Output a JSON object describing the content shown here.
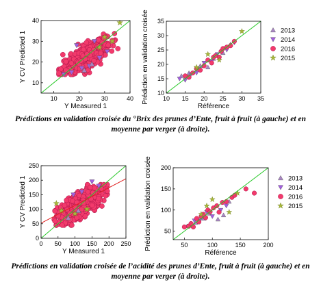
{
  "captions": {
    "brix": "Prédictions en validation croisée du °Brix des prunes d’Ente, fruit à fruit (à gauche) et en moyenne par verger (à droite).",
    "acid": "Prédictions en validation croisée de l’acidité des prunes d’Ente, fruit à fruit (à gauche) et en moyenne par verger (à droite)."
  },
  "legend": [
    {
      "label": "2013",
      "marker": "triangle-up",
      "color": "#a985c4"
    },
    {
      "label": "2014",
      "marker": "triangle-down",
      "color": "#a35ee0"
    },
    {
      "label": "2016",
      "marker": "circle",
      "color": "#f23a6c"
    },
    {
      "label": "2015",
      "marker": "star",
      "color": "#a8b83a"
    }
  ],
  "colors": {
    "identity_line": "#28c828",
    "regression_line": "#e02020",
    "points": "#f23a6c",
    "edge": "#b0154a"
  },
  "chart_data": [
    {
      "id": "brix_fruit",
      "type": "scatter",
      "xlabel": "Y Measured 1",
      "ylabel": "Y CV Predicted 1",
      "xlim": [
        5,
        40
      ],
      "ylim": [
        5,
        40
      ],
      "xticks": [
        "10",
        "20",
        "30",
        "40"
      ],
      "yticks": [
        "10",
        "20",
        "30",
        "40"
      ],
      "xtick_values": [
        10,
        20,
        30,
        40
      ],
      "ytick_values": [
        10,
        20,
        30,
        40
      ],
      "reference_line": {
        "name": "",
        "points": [
          [
            5,
            5
          ],
          [
            40,
            40
          ]
        ]
      },
      "cloud": {
        "center": [
          22,
          22
        ],
        "n": 520,
        "x_sd": 4.4,
        "slope": 0.72,
        "noise": 2.8,
        "xrange": [
          12,
          37
        ],
        "yrange": [
          14,
          37
        ]
      },
      "series": [
        {
          "name": "2014",
          "points": [
            [
              14,
              14
            ],
            [
              17,
              15
            ],
            [
              21,
              17
            ],
            [
              24,
              18
            ],
            [
              28,
              22
            ],
            [
              31,
              25
            ],
            [
              26,
              30
            ],
            [
              19,
              28
            ]
          ]
        },
        {
          "name": "2013",
          "points": [
            [
              25,
              19
            ],
            [
              22,
              16
            ]
          ]
        },
        {
          "name": "2015",
          "points": [
            [
              36,
              39
            ],
            [
              33,
              30
            ],
            [
              30,
              32
            ],
            [
              28,
              27
            ]
          ]
        }
      ]
    },
    {
      "id": "brix_orchard",
      "type": "scatter",
      "xlabel": "Référence",
      "ylabel": "Prédiction en validation croisée",
      "xlim": [
        10,
        35
      ],
      "ylim": [
        10,
        35
      ],
      "xticks": [
        "10",
        "15",
        "20",
        "25",
        "30",
        "35"
      ],
      "yticks": [
        "10",
        "15",
        "20",
        "25",
        "30",
        "35"
      ],
      "xtick_values": [
        10,
        15,
        20,
        25,
        30,
        35
      ],
      "ytick_values": [
        10,
        15,
        20,
        25,
        30,
        35
      ],
      "reference_line": {
        "name": "",
        "points": [
          [
            10,
            10
          ],
          [
            35,
            35
          ]
        ]
      },
      "series": [
        {
          "name": "2013",
          "points": [
            [
              14,
              16
            ],
            [
              16,
              17
            ],
            [
              19,
              19.5
            ],
            [
              21,
              19
            ],
            [
              22.5,
              22
            ],
            [
              25,
              24
            ],
            [
              27,
              27
            ]
          ]
        },
        {
          "name": "2014",
          "points": [
            [
              13.5,
              15
            ],
            [
              15,
              14.5
            ],
            [
              16.5,
              16.5
            ],
            [
              18,
              17
            ],
            [
              20,
              20.5
            ],
            [
              22,
              21
            ],
            [
              23.5,
              23.5
            ],
            [
              26,
              25
            ],
            [
              28,
              27.5
            ]
          ]
        },
        {
          "name": "2016",
          "points": [
            [
              15,
              16
            ],
            [
              16,
              15.5
            ],
            [
              17,
              17
            ],
            [
              18,
              18.5
            ],
            [
              19,
              18
            ],
            [
              20,
              19.5
            ],
            [
              21,
              21.5
            ],
            [
              22,
              20.5
            ],
            [
              22.5,
              22.5
            ],
            [
              23,
              23
            ],
            [
              24,
              22.5
            ],
            [
              24.5,
              24.5
            ],
            [
              25,
              25.5
            ],
            [
              26,
              26
            ],
            [
              27,
              26.5
            ],
            [
              28,
              28
            ]
          ]
        },
        {
          "name": "2015",
          "points": [
            [
              30,
              31.5
            ],
            [
              21,
              23.5
            ],
            [
              24,
              21.5
            ],
            [
              18,
              19
            ]
          ]
        }
      ]
    },
    {
      "id": "acid_fruit",
      "type": "scatter",
      "xlabel": "Y Measured 1",
      "ylabel": "Y CV Predicted 1",
      "xlim": [
        0,
        250
      ],
      "ylim": [
        0,
        250
      ],
      "xticks": [
        "0",
        "50",
        "100",
        "150",
        "200",
        "250"
      ],
      "yticks": [
        "0",
        "50",
        "100",
        "150",
        "200",
        "250"
      ],
      "xtick_values": [
        0,
        50,
        100,
        150,
        200,
        250
      ],
      "ytick_values": [
        0,
        50,
        100,
        150,
        200,
        250
      ],
      "reference_line": {
        "name": "",
        "points": [
          [
            0,
            0
          ],
          [
            250,
            250
          ]
        ]
      },
      "regression_line": {
        "name": "",
        "points": [
          [
            0,
            52
          ],
          [
            250,
            205
          ]
        ]
      },
      "cloud": {
        "center": [
          112,
          112
        ],
        "n": 560,
        "x_sd": 30,
        "slope": 0.62,
        "noise": 22,
        "xrange": [
          38,
          195
        ],
        "yrange": [
          45,
          185
        ]
      },
      "series": [
        {
          "name": "2014",
          "points": [
            [
              150,
              195
            ],
            [
              170,
              180
            ],
            [
              120,
              160
            ],
            [
              95,
              150
            ]
          ]
        },
        {
          "name": "2015",
          "points": [
            [
              45,
              120
            ],
            [
              60,
              95
            ],
            [
              100,
              85
            ],
            [
              135,
              100
            ]
          ]
        },
        {
          "name": "2013",
          "points": [
            [
              80,
              70
            ],
            [
              110,
              95
            ]
          ]
        }
      ]
    },
    {
      "id": "acid_orchard",
      "type": "scatter",
      "xlabel": "Référence",
      "ylabel": "Prédiction en validation croisée",
      "xlim": [
        30,
        200
      ],
      "ylim": [
        30,
        200
      ],
      "xticks": [
        "50",
        "100",
        "150",
        "200"
      ],
      "yticks": [
        "50",
        "100",
        "150",
        "200"
      ],
      "xtick_values": [
        50,
        100,
        150,
        200
      ],
      "ytick_values": [
        50,
        100,
        150,
        200
      ],
      "reference_line": {
        "name": "",
        "points": [
          [
            30,
            30
          ],
          [
            200,
            200
          ]
        ]
      },
      "series": [
        {
          "name": "2013",
          "points": [
            [
              55,
              62
            ],
            [
              70,
              70
            ],
            [
              85,
              80
            ],
            [
              95,
              92
            ],
            [
              110,
              78
            ],
            [
              120,
              88
            ],
            [
              130,
              120
            ]
          ]
        },
        {
          "name": "2014",
          "points": [
            [
              60,
              62
            ],
            [
              68,
              75
            ],
            [
              78,
              76
            ],
            [
              90,
              95
            ],
            [
              100,
              85
            ],
            [
              115,
              100
            ],
            [
              125,
              110
            ]
          ]
        },
        {
          "name": "2016",
          "points": [
            [
              50,
              60
            ],
            [
              58,
              62
            ],
            [
              62,
              68
            ],
            [
              66,
              60
            ],
            [
              72,
              80
            ],
            [
              76,
              72
            ],
            [
              80,
              85
            ],
            [
              84,
              90
            ],
            [
              88,
              82
            ],
            [
              92,
              100
            ],
            [
              96,
              96
            ],
            [
              102,
              105
            ],
            [
              108,
              110
            ],
            [
              112,
              95
            ],
            [
              118,
              118
            ],
            [
              125,
              120
            ],
            [
              135,
              130
            ],
            [
              140,
              135
            ],
            [
              160,
              150
            ],
            [
              175,
              140
            ]
          ]
        },
        {
          "name": "2015",
          "points": [
            [
              100,
              125
            ],
            [
              90,
              110
            ],
            [
              80,
              90
            ],
            [
              130,
              95
            ],
            [
              145,
              140
            ]
          ]
        }
      ]
    }
  ]
}
